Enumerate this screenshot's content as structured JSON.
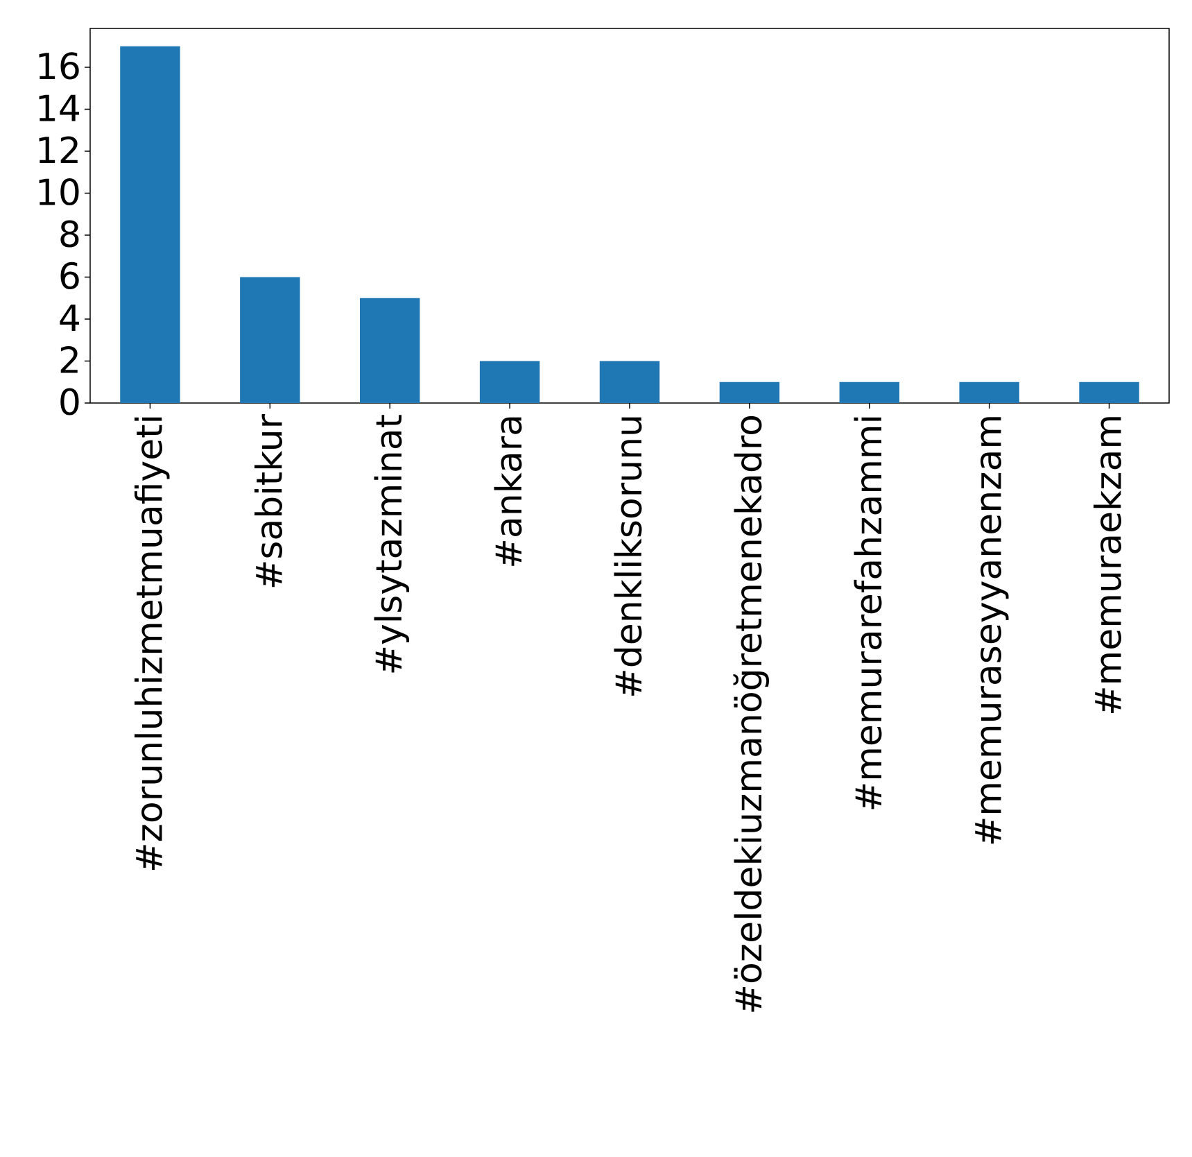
{
  "chart_data": {
    "type": "bar",
    "title": "",
    "xlabel": "",
    "ylabel": "",
    "categories": [
      "#zorunluhizmetmuafiyeti",
      "#sabitkur",
      "#ylsytazminat",
      "#ankara",
      "#denkliksorunu",
      "#özeldekiuzmanöğretmenekadro",
      "#memurarefahzammi",
      "#memuraseyyanenzam",
      "#memuraekzam"
    ],
    "values": [
      17,
      6,
      5,
      2,
      2,
      1,
      1,
      1,
      1
    ],
    "ylim": [
      0,
      17.85
    ],
    "yticks": [
      0,
      2,
      4,
      6,
      8,
      10,
      12,
      14,
      16
    ],
    "bar_color": "#1f77b4",
    "grid": false,
    "legend": "none"
  }
}
